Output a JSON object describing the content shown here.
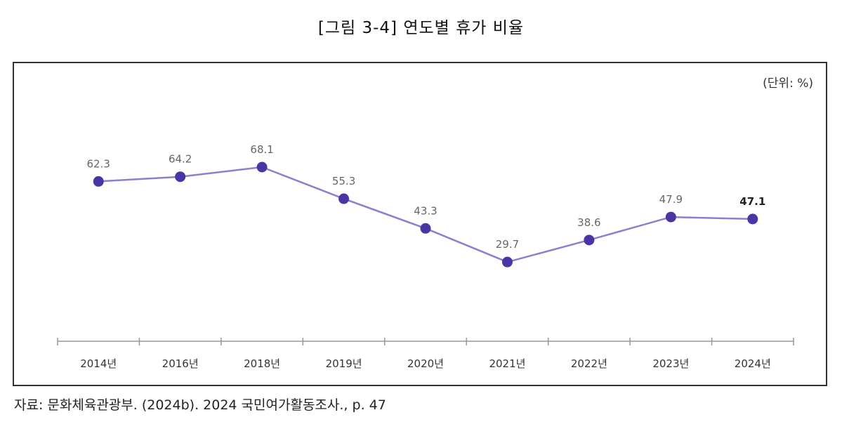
{
  "figure_title": "[그림 3-4] 연도별 휴가 비율",
  "unit_label": "(단위: %)",
  "source": "자료: 문화체육관광부. (2024b). 2024 국민여가활동조사., p. 47",
  "colors": {
    "line": "#8a7fd0",
    "marker": "#4b35a3",
    "frame": "#333333"
  },
  "chart_data": {
    "type": "line",
    "categories": [
      "2014년",
      "2016년",
      "2018년",
      "2019년",
      "2020년",
      "2021년",
      "2022년",
      "2023년",
      "2024년"
    ],
    "values": [
      62.3,
      64.2,
      68.1,
      55.3,
      43.3,
      29.7,
      38.6,
      47.9,
      47.1
    ],
    "value_labels": [
      "62.3",
      "64.2",
      "68.1",
      "55.3",
      "43.3",
      "29.7",
      "38.6",
      "47.9",
      "47.1"
    ],
    "bold_label_index": 8,
    "ylim": [
      0,
      100
    ],
    "grid": false,
    "legend": "none"
  }
}
